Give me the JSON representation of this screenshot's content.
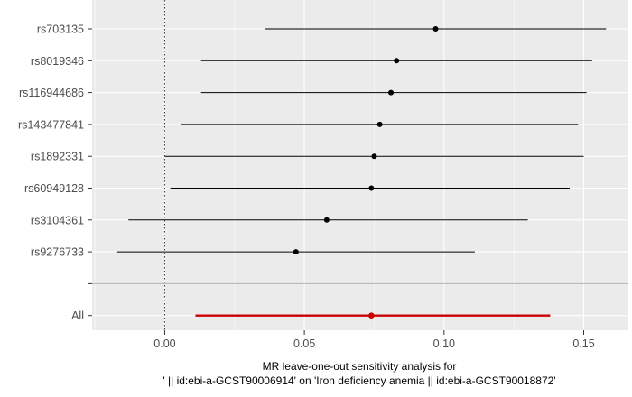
{
  "chart_data": {
    "type": "forest",
    "xlabel": {
      "line1": "MR leave-one-out sensitivity analysis for",
      "line2": "' || id:ebi-a-GCST90006914' on 'Iron deficiency anemia || id:ebi-a-GCST90018872'"
    },
    "xlim": [
      -0.026,
      0.166
    ],
    "xticks": [
      0.0,
      0.05,
      0.1,
      0.15
    ],
    "xtick_labels": [
      "0.00",
      "0.05",
      "0.10",
      "0.15"
    ],
    "reference_line": 0,
    "grid": true,
    "snps": [
      {
        "label": "rs703135",
        "estimate": 0.097,
        "lower": 0.036,
        "upper": 0.158
      },
      {
        "label": "rs8019346",
        "estimate": 0.083,
        "lower": 0.013,
        "upper": 0.153
      },
      {
        "label": "rs116944686",
        "estimate": 0.081,
        "lower": 0.013,
        "upper": 0.151
      },
      {
        "label": "rs143477841",
        "estimate": 0.077,
        "lower": 0.006,
        "upper": 0.148
      },
      {
        "label": "rs1892331",
        "estimate": 0.075,
        "lower": 0.0,
        "upper": 0.15
      },
      {
        "label": "rs60949128",
        "estimate": 0.074,
        "lower": 0.002,
        "upper": 0.145
      },
      {
        "label": "rs3104361",
        "estimate": 0.058,
        "lower": -0.013,
        "upper": 0.13
      },
      {
        "label": "rs9276733",
        "estimate": 0.047,
        "lower": -0.017,
        "upper": 0.111
      }
    ],
    "separator_label": "",
    "overall": {
      "label": "All",
      "estimate": 0.074,
      "lower": 0.011,
      "upper": 0.138
    },
    "colors": {
      "panel": "#ebebeb",
      "grid": "#ffffff",
      "snp": "#000000",
      "overall": "#cc0000",
      "separator": "#b3b3b3",
      "reference": "#333333"
    }
  }
}
